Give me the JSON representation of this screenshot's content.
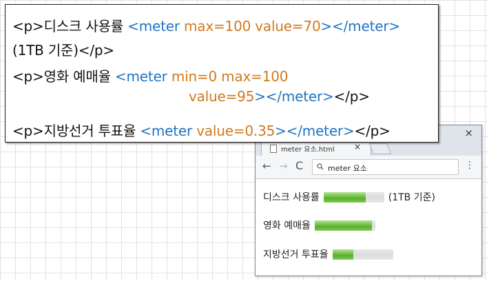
{
  "code": {
    "line1": {
      "open_p": "<p>",
      "text": "디스크 사용률 ",
      "meter_open": "<meter",
      "attrs": " max=100 value=70",
      "meter_close": "></meter>"
    },
    "line2": {
      "text": "(1TB 기준)",
      "close_p": "</p>"
    },
    "line3": {
      "open_p": "<p>",
      "text": "영화 예매율 ",
      "meter_open": "<meter",
      "attrs": " min=0 max=100"
    },
    "line4": {
      "attrs": "value=95",
      "meter_close": "></meter>",
      "close_p": "</p>"
    },
    "line5": {
      "open_p": "<p>",
      "text": "지방선거  투표율 ",
      "meter_open": "<meter",
      "attrs": " value=0.35",
      "meter_close": "></meter>",
      "close_p": "</p>"
    }
  },
  "browser": {
    "tab_title": "meter 요소.html",
    "tab_close": "×",
    "window_close": "×",
    "nav_back": "←",
    "nav_forward": "→",
    "nav_reload": "C",
    "address": "meter 요소",
    "menu": "⋮",
    "rows": [
      {
        "label": "디스크 사용률",
        "meter_fraction": 0.7,
        "suffix": "(1TB 기준)"
      },
      {
        "label": "영화 예매율",
        "meter_fraction": 0.95,
        "suffix": ""
      },
      {
        "label": "지방선거 투표율",
        "meter_fraction": 0.35,
        "suffix": ""
      }
    ]
  },
  "colors": {
    "tag": "#111111",
    "element": "#1f73c4",
    "attribute": "#d07a1c",
    "meter_green": "#5aaf30",
    "meter_track": "#e2e2e2"
  }
}
